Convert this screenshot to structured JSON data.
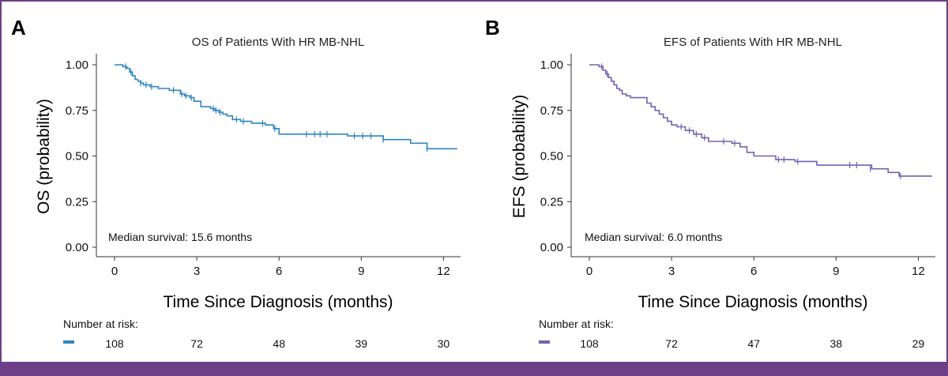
{
  "colors": {
    "frame": "#6c3f86",
    "os_series": "#2e86c1",
    "efs_series": "#6f64b0"
  },
  "chart_data": [
    {
      "type": "line",
      "panel_label": "A",
      "title": "OS of Patients With HR MB-NHL",
      "xlabel": "Time Since Diagnosis (months)",
      "ylabel": "OS (probability)",
      "xlim": [
        0,
        12.5
      ],
      "ylim": [
        0,
        1
      ],
      "x_ticks": [
        0,
        3,
        6,
        9,
        12
      ],
      "y_ticks": [
        "0.00",
        "0.25",
        "0.50",
        "0.75",
        "1.00"
      ],
      "y_tick_values": [
        0,
        0.25,
        0.5,
        0.75,
        1
      ],
      "grid": false,
      "annotation": "Median survival: 15.6 months",
      "series": [
        {
          "color": "#2e86c1",
          "x": [
            0,
            0.3,
            0.45,
            0.55,
            0.65,
            0.75,
            0.85,
            0.95,
            1.05,
            1.3,
            1.6,
            2.0,
            2.4,
            2.55,
            2.75,
            2.9,
            3.15,
            3.5,
            3.65,
            3.8,
            3.95,
            4.1,
            4.3,
            4.6,
            5.0,
            5.5,
            5.8,
            6.0,
            7.2,
            7.7,
            8.5,
            9.8,
            10.8,
            11.4,
            12.5
          ],
          "y": [
            1.0,
            0.99,
            0.98,
            0.96,
            0.94,
            0.92,
            0.91,
            0.9,
            0.89,
            0.88,
            0.87,
            0.86,
            0.84,
            0.83,
            0.82,
            0.8,
            0.77,
            0.76,
            0.75,
            0.74,
            0.73,
            0.72,
            0.7,
            0.69,
            0.68,
            0.67,
            0.65,
            0.62,
            0.62,
            0.62,
            0.61,
            0.59,
            0.57,
            0.54,
            0.54
          ]
        }
      ],
      "censor_marks": [
        {
          "x": 0.4,
          "y": 0.99
        },
        {
          "x": 0.6,
          "y": 0.96
        },
        {
          "x": 0.95,
          "y": 0.9
        },
        {
          "x": 1.15,
          "y": 0.89
        },
        {
          "x": 1.35,
          "y": 0.88
        },
        {
          "x": 2.15,
          "y": 0.86
        },
        {
          "x": 2.45,
          "y": 0.84
        },
        {
          "x": 2.6,
          "y": 0.83
        },
        {
          "x": 2.8,
          "y": 0.82
        },
        {
          "x": 3.6,
          "y": 0.76
        },
        {
          "x": 3.7,
          "y": 0.75
        },
        {
          "x": 3.85,
          "y": 0.74
        },
        {
          "x": 4.45,
          "y": 0.7
        },
        {
          "x": 4.7,
          "y": 0.69
        },
        {
          "x": 5.4,
          "y": 0.68
        },
        {
          "x": 5.85,
          "y": 0.65
        },
        {
          "x": 7.0,
          "y": 0.62
        },
        {
          "x": 7.3,
          "y": 0.62
        },
        {
          "x": 7.5,
          "y": 0.62
        },
        {
          "x": 7.75,
          "y": 0.62
        },
        {
          "x": 8.75,
          "y": 0.61
        },
        {
          "x": 9.05,
          "y": 0.61
        },
        {
          "x": 9.35,
          "y": 0.61
        },
        {
          "x": 9.8,
          "y": 0.59
        },
        {
          "x": 11.4,
          "y": 0.54
        }
      ],
      "risk_table": {
        "label": "Number at risk:",
        "x": [
          0,
          3,
          6,
          9,
          12
        ],
        "counts": [
          "108",
          "72",
          "48",
          "39",
          "30"
        ]
      }
    },
    {
      "type": "line",
      "panel_label": "B",
      "title": "EFS of Patients With HR MB-NHL",
      "xlabel": "Time Since Diagnosis (months)",
      "ylabel": "EFS (probability)",
      "xlim": [
        0,
        12.5
      ],
      "ylim": [
        0,
        1
      ],
      "x_ticks": [
        0,
        3,
        6,
        9,
        12
      ],
      "y_ticks": [
        "0.00",
        "0.25",
        "0.50",
        "0.75",
        "1.00"
      ],
      "y_tick_values": [
        0,
        0.25,
        0.5,
        0.75,
        1
      ],
      "grid": false,
      "annotation": "Median survival: 6.0 months",
      "series": [
        {
          "color": "#6f64b0",
          "x": [
            0,
            0.35,
            0.5,
            0.6,
            0.7,
            0.8,
            0.9,
            1.0,
            1.1,
            1.2,
            1.35,
            1.5,
            2.1,
            2.25,
            2.4,
            2.55,
            2.7,
            2.85,
            3.0,
            3.2,
            3.5,
            3.8,
            4.1,
            4.35,
            5.2,
            5.5,
            5.75,
            6.0,
            6.8,
            7.5,
            8.3,
            10.3,
            10.9,
            11.3,
            12.5
          ],
          "y": [
            1.0,
            0.99,
            0.97,
            0.95,
            0.93,
            0.91,
            0.89,
            0.87,
            0.86,
            0.84,
            0.83,
            0.82,
            0.79,
            0.77,
            0.75,
            0.73,
            0.71,
            0.69,
            0.67,
            0.66,
            0.64,
            0.62,
            0.6,
            0.58,
            0.57,
            0.55,
            0.52,
            0.5,
            0.48,
            0.47,
            0.45,
            0.43,
            0.41,
            0.39,
            0.39
          ]
        }
      ],
      "censor_marks": [
        {
          "x": 0.45,
          "y": 0.99
        },
        {
          "x": 0.65,
          "y": 0.95
        },
        {
          "x": 3.35,
          "y": 0.66
        },
        {
          "x": 3.65,
          "y": 0.64
        },
        {
          "x": 3.9,
          "y": 0.62
        },
        {
          "x": 4.2,
          "y": 0.6
        },
        {
          "x": 4.9,
          "y": 0.58
        },
        {
          "x": 5.3,
          "y": 0.57
        },
        {
          "x": 6.9,
          "y": 0.48
        },
        {
          "x": 7.1,
          "y": 0.48
        },
        {
          "x": 7.6,
          "y": 0.47
        },
        {
          "x": 9.5,
          "y": 0.45
        },
        {
          "x": 9.75,
          "y": 0.45
        },
        {
          "x": 10.25,
          "y": 0.43
        },
        {
          "x": 11.35,
          "y": 0.39
        }
      ],
      "risk_table": {
        "label": "Number at risk:",
        "x": [
          0,
          3,
          6,
          9,
          12
        ],
        "counts": [
          "108",
          "72",
          "47",
          "38",
          "29"
        ]
      }
    }
  ]
}
